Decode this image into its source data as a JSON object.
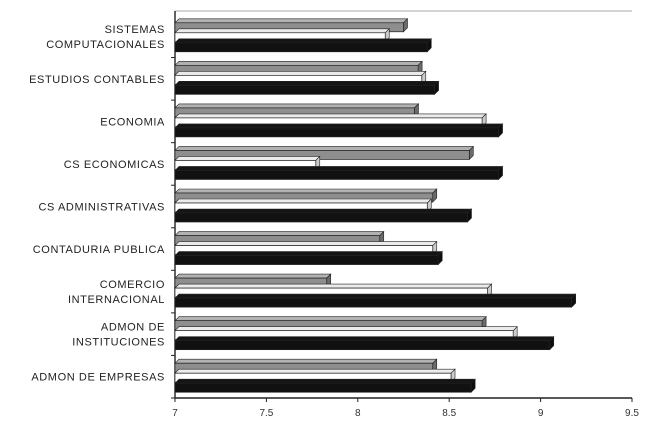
{
  "chart_data": {
    "type": "bar",
    "orientation": "horizontal",
    "title": "",
    "xlabel": "",
    "ylabel": "",
    "xlim": [
      7,
      9.5
    ],
    "x_ticks": [
      "7",
      "7.5",
      "8",
      "8.5",
      "9",
      "9.5"
    ],
    "grid": false,
    "legend": "none",
    "bar_style": "3d",
    "categories": [
      [
        "SISTEMAS",
        "COMPUTACIONALES"
      ],
      [
        "ESTUDIOS CONTABLES"
      ],
      [
        "ECONOMIA"
      ],
      [
        "CS ECONOMICAS"
      ],
      [
        "CS ADMINISTRATIVAS"
      ],
      [
        "CONTADURIA PUBLICA"
      ],
      [
        "COMERCIO",
        "INTERNACIONAL"
      ],
      [
        "ADMON DE",
        "INSTITUCIONES"
      ],
      [
        "ADMON DE EMPRESAS"
      ]
    ],
    "series": [
      {
        "color": "#8e8e8e",
        "values": [
          8.25,
          8.33,
          8.31,
          8.61,
          8.41,
          8.12,
          7.83,
          8.68,
          8.41
        ]
      },
      {
        "color": "#ffffff",
        "values": [
          8.15,
          8.35,
          8.68,
          7.77,
          8.38,
          8.41,
          8.71,
          8.85,
          8.51
        ]
      },
      {
        "color": "#111111",
        "values": [
          8.38,
          8.42,
          8.77,
          8.77,
          8.6,
          8.44,
          9.17,
          9.05,
          8.62
        ]
      }
    ]
  }
}
